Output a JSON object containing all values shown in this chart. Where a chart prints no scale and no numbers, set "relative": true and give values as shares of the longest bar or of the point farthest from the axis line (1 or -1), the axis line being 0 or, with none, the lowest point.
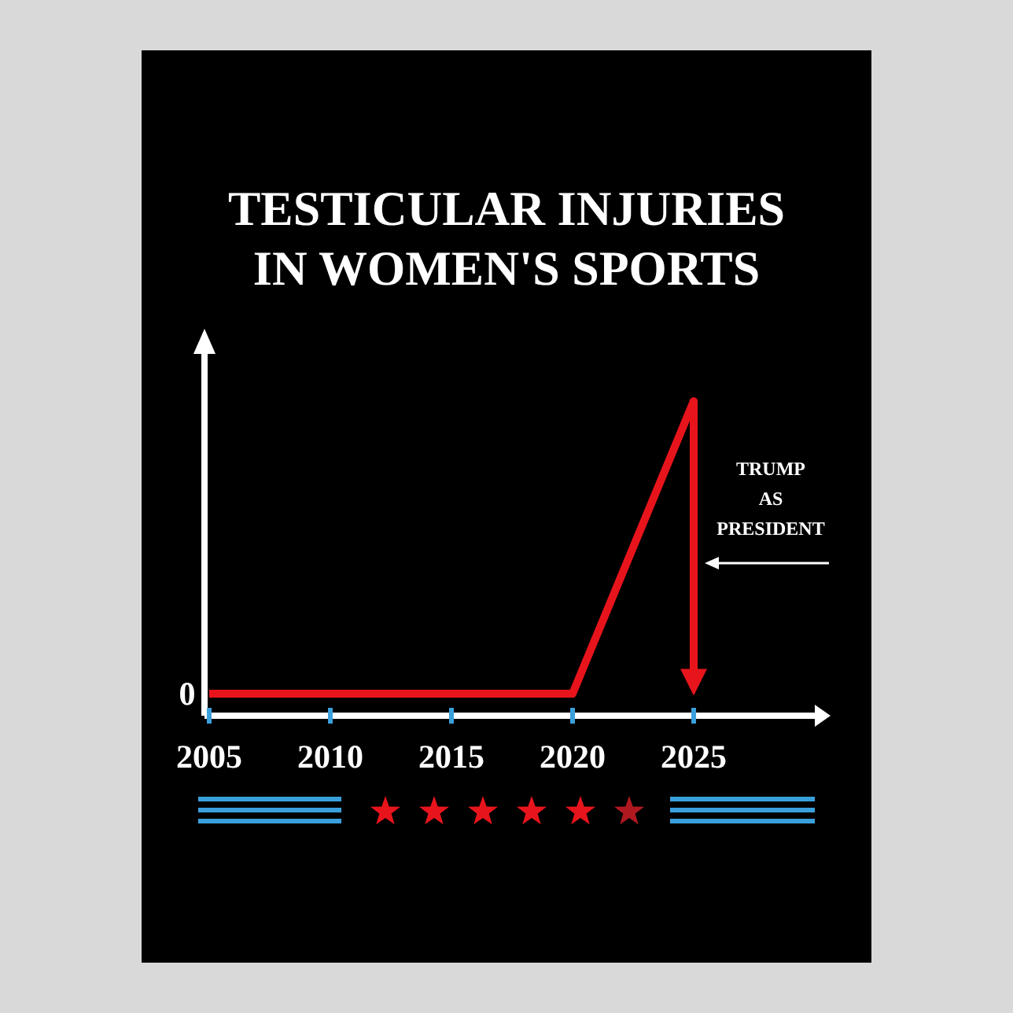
{
  "chart_data": {
    "type": "line",
    "title": "TESTICULAR INJURIES\nIN WOMEN'S SPORTS",
    "relative": true,
    "x": [
      2005,
      2020,
      2025,
      2025
    ],
    "series": [
      {
        "color": "#e8141c",
        "values": [
          0,
          0,
          1,
          0.03
        ]
      }
    ],
    "xlim": [
      2005,
      2030
    ],
    "xticks": [
      2005,
      2010,
      2015,
      2020,
      2025
    ],
    "annotations": [
      {
        "text": "0",
        "x": 2005,
        "y": 0
      },
      "TRUMP\nAS\nPRESIDENT"
    ],
    "marker": "none",
    "line_style": "solid"
  }
}
